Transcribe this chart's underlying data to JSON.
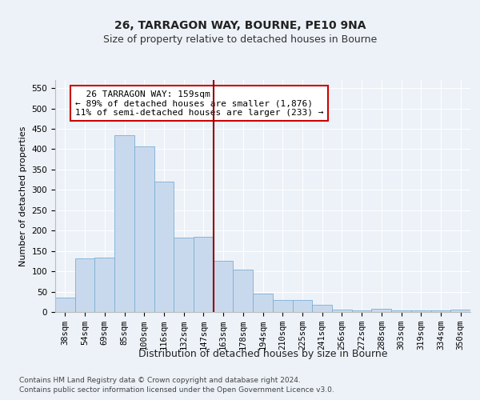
{
  "title1": "26, TARRAGON WAY, BOURNE, PE10 9NA",
  "title2": "Size of property relative to detached houses in Bourne",
  "xlabel": "Distribution of detached houses by size in Bourne",
  "ylabel": "Number of detached properties",
  "categories": [
    "38sqm",
    "54sqm",
    "69sqm",
    "85sqm",
    "100sqm",
    "116sqm",
    "132sqm",
    "147sqm",
    "163sqm",
    "178sqm",
    "194sqm",
    "210sqm",
    "225sqm",
    "241sqm",
    "256sqm",
    "272sqm",
    "288sqm",
    "303sqm",
    "319sqm",
    "334sqm",
    "350sqm"
  ],
  "values": [
    35,
    132,
    133,
    435,
    407,
    320,
    183,
    184,
    125,
    104,
    45,
    30,
    30,
    17,
    6,
    4,
    8,
    3,
    3,
    3,
    5
  ],
  "bar_color": "#c9d9ed",
  "bar_edge_color": "#7bafd4",
  "vline_color": "#900000",
  "annotation_box_text": "  26 TARRAGON WAY: 159sqm\n← 89% of detached houses are smaller (1,876)\n11% of semi-detached houses are larger (233) →",
  "annotation_box_color": "#cc0000",
  "annotation_box_fill": "#ffffff",
  "ylim": [
    0,
    570
  ],
  "yticks": [
    0,
    50,
    100,
    150,
    200,
    250,
    300,
    350,
    400,
    450,
    500,
    550
  ],
  "footer1": "Contains HM Land Registry data © Crown copyright and database right 2024.",
  "footer2": "Contains public sector information licensed under the Open Government Licence v3.0.",
  "bg_color": "#edf2f8",
  "plot_bg_color": "#edf2f8",
  "grid_color": "#ffffff",
  "title1_fontsize": 10,
  "title2_fontsize": 9,
  "xlabel_fontsize": 9,
  "ylabel_fontsize": 8,
  "tick_fontsize": 7.5,
  "footer_fontsize": 6.5
}
